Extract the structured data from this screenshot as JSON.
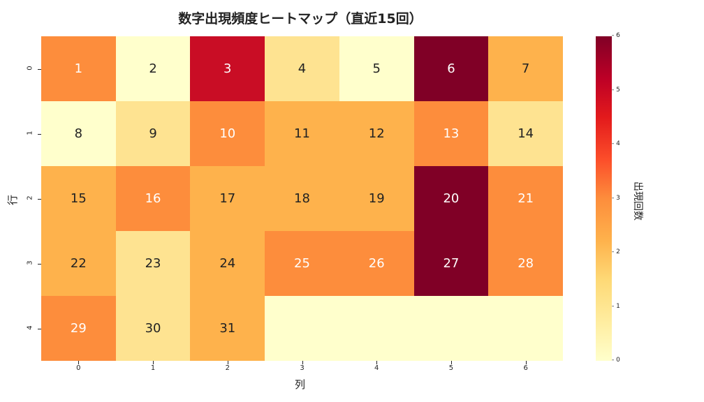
{
  "chart_data": {
    "type": "heatmap",
    "title": "数字出現頻度ヒートマップ（直近15回）",
    "xlabel": "列",
    "ylabel": "行",
    "colorbar_label": "出現回数",
    "colorbar_ticks": [
      "0",
      "1",
      "2",
      "3",
      "4",
      "5",
      "6"
    ],
    "colormap": "YlOrRd",
    "vmin": 0,
    "vmax": 6,
    "x_ticks": [
      "0",
      "1",
      "2",
      "3",
      "4",
      "5",
      "6"
    ],
    "y_ticks": [
      "0",
      "1",
      "2",
      "3",
      "4"
    ],
    "annotations": [
      [
        "1",
        "2",
        "3",
        "4",
        "5",
        "6",
        "7"
      ],
      [
        "8",
        "9",
        "10",
        "11",
        "12",
        "13",
        "14"
      ],
      [
        "15",
        "16",
        "17",
        "18",
        "19",
        "20",
        "21"
      ],
      [
        "22",
        "23",
        "24",
        "25",
        "26",
        "27",
        "28"
      ],
      [
        "29",
        "30",
        "31",
        "",
        "",
        "",
        ""
      ]
    ],
    "values": [
      [
        3,
        0,
        5,
        1,
        0,
        6,
        2
      ],
      [
        0,
        1,
        3,
        2,
        2,
        3,
        1
      ],
      [
        2,
        3,
        2,
        2,
        2,
        6,
        3
      ],
      [
        2,
        1,
        2,
        3,
        3,
        6,
        3
      ],
      [
        3,
        1,
        2,
        0,
        0,
        0,
        0
      ]
    ]
  },
  "colors": [
    "#ffffcc",
    "#fee391",
    "#feb24c",
    "#fd8d3c",
    "#f0502a",
    "#c90d25",
    "#800026"
  ]
}
